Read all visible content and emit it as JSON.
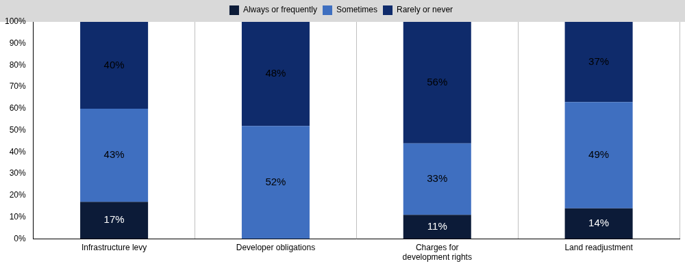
{
  "chart_data": {
    "type": "bar",
    "stacked": true,
    "grid": true,
    "legend": "top",
    "data_labels": true,
    "categories": [
      "Infrastructure levy",
      "Developer obligations",
      "Charges for development rights",
      "Land readjustment"
    ],
    "series": [
      {
        "name": "Always or frequently",
        "color": "#0c1b38",
        "values": [
          17,
          0,
          11,
          14
        ],
        "value_labels": [
          "17%",
          null,
          "11%",
          "14%"
        ]
      },
      {
        "name": "Sometimes",
        "color": "#3f6fc0",
        "values": [
          43,
          52,
          33,
          49
        ],
        "value_labels": [
          "43%",
          "52%",
          "33%",
          "49%"
        ]
      },
      {
        "name": "Rarely or never",
        "color": "#0f2b6b",
        "values": [
          40,
          48,
          56,
          37
        ],
        "value_labels": [
          "40%",
          "48%",
          "56%",
          "37%"
        ]
      }
    ],
    "ylim": [
      0,
      100
    ],
    "yticks": [
      {
        "value": 0,
        "label": "0%"
      },
      {
        "value": 10,
        "label": "10%"
      },
      {
        "value": 20,
        "label": "20%"
      },
      {
        "value": 30,
        "label": "30%"
      },
      {
        "value": 40,
        "label": "40%"
      },
      {
        "value": 50,
        "label": "50%"
      },
      {
        "value": 60,
        "label": "60%"
      },
      {
        "value": 70,
        "label": "70%"
      },
      {
        "value": 80,
        "label": "80%"
      },
      {
        "value": 90,
        "label": "90%"
      },
      {
        "value": 100,
        "label": "100%"
      }
    ]
  }
}
